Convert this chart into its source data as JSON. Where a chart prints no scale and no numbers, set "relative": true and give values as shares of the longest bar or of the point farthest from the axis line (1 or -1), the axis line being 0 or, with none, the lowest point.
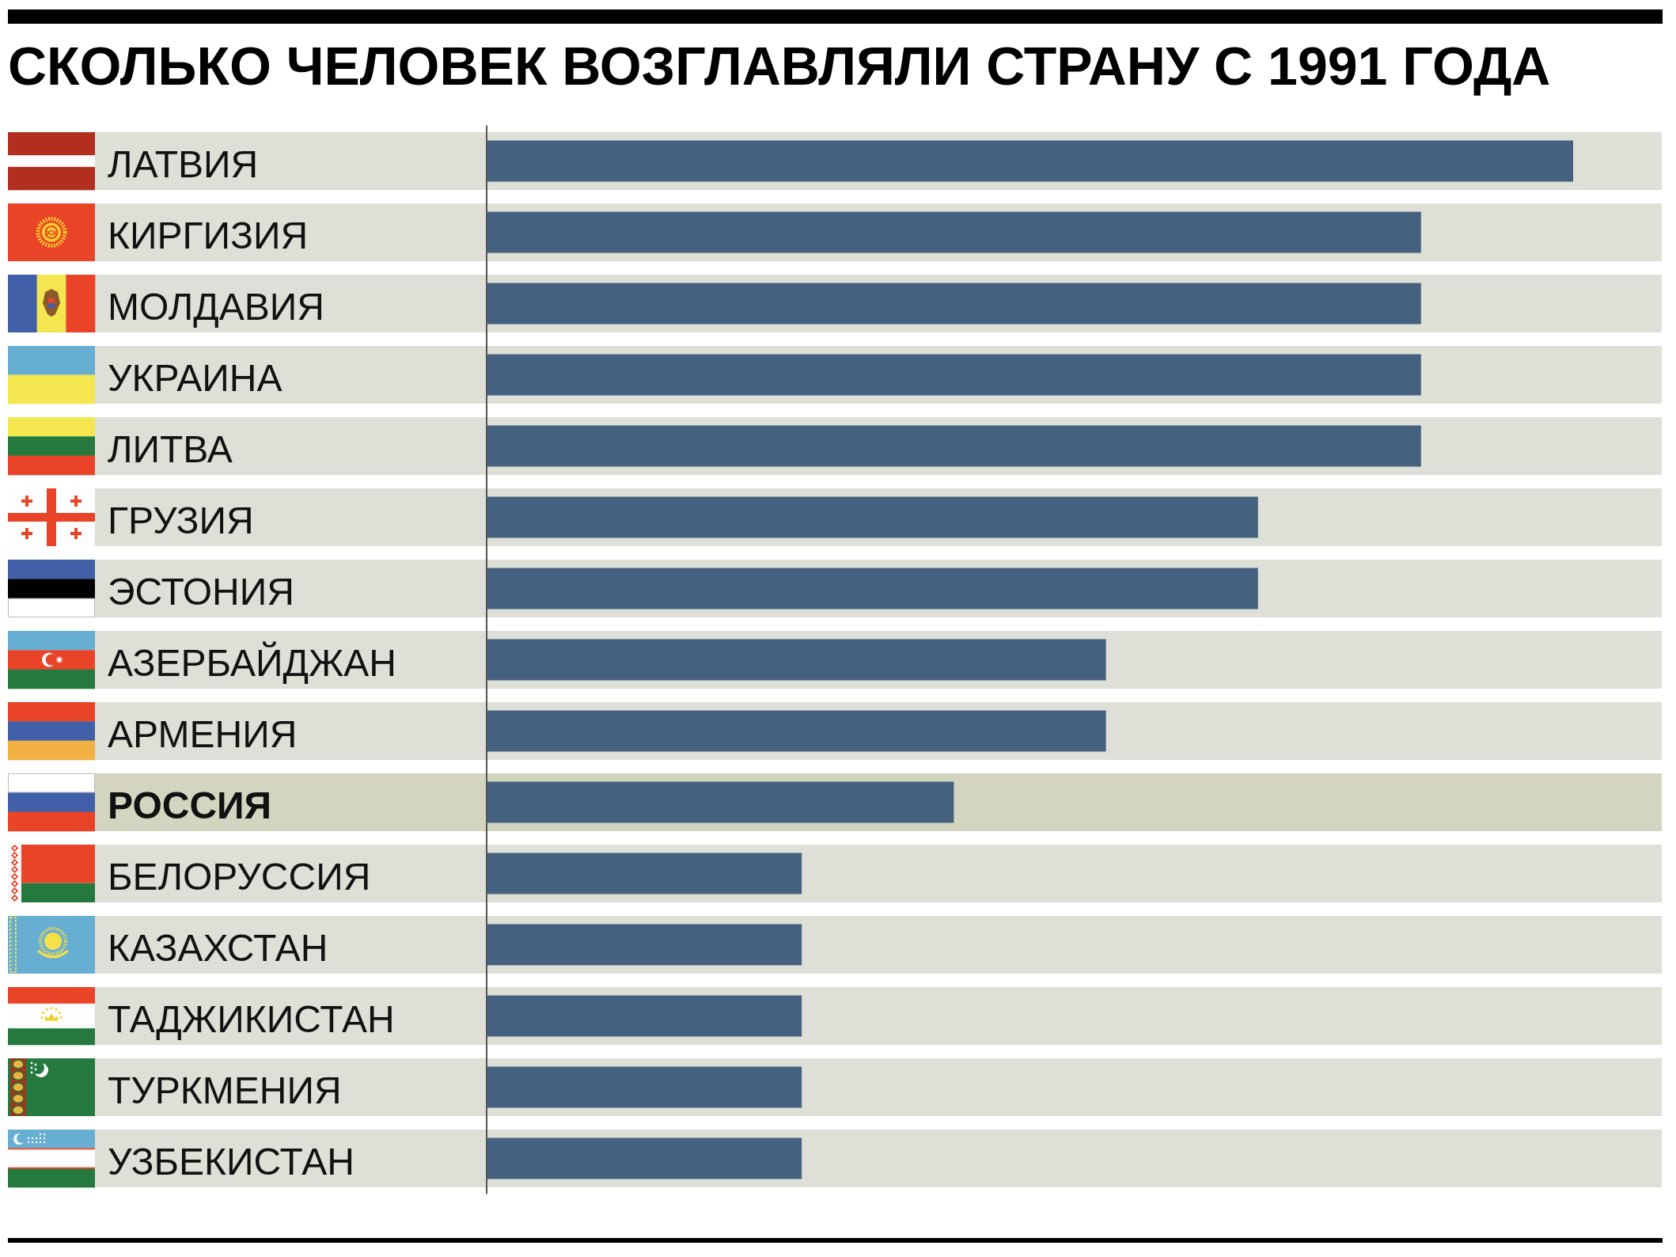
{
  "chart_data": {
    "type": "bar",
    "orientation": "horizontal",
    "relative": true,
    "title": "СКОЛЬКО ЧЕЛОВЕК ВОЗГЛАВЛЯЛИ СТРАНУ С 1991 ГОДА",
    "categories": [
      "ЛАТВИЯ",
      "КИРГИЗИЯ",
      "МОЛДАВИЯ",
      "УКРАИНА",
      "ЛИТВА",
      "ГРУЗИЯ",
      "ЭСТОНИЯ",
      "АЗЕРБАЙДЖАН",
      "АРМЕНИЯ",
      "РОССИЯ",
      "БЕЛОРУССИЯ",
      "КАЗАХСТАН",
      "ТАДЖИКИСТАН",
      "ТУРКМЕНИЯ",
      "УЗБЕКИСТАН"
    ],
    "values": [
      1,
      0.86,
      0.86,
      0.86,
      0.86,
      0.71,
      0.71,
      0.57,
      0.57,
      0.43,
      0.29,
      0.29,
      0.29,
      0.29,
      0.29
    ],
    "color": "#44627f",
    "bands": [
      {
        "axis": "y",
        "from": "ЛАТВИЯ",
        "to": "ЛАТВИЯ",
        "color": "#dedfd6"
      },
      {
        "axis": "y",
        "from": "КИРГИЗИЯ",
        "to": "КИРГИЗИЯ",
        "color": "#dedfd6"
      },
      {
        "axis": "y",
        "from": "МОЛДАВИЯ",
        "to": "МОЛДАВИЯ",
        "color": "#dedfd6"
      },
      {
        "axis": "y",
        "from": "УКРАИНА",
        "to": "УКРАИНА",
        "color": "#dedfd6"
      },
      {
        "axis": "y",
        "from": "ЛИТВА",
        "to": "ЛИТВА",
        "color": "#dedfd6"
      },
      {
        "axis": "y",
        "from": "ГРУЗИЯ",
        "to": "ГРУЗИЯ",
        "color": "#dedfd6"
      },
      {
        "axis": "y",
        "from": "ЭСТОНИЯ",
        "to": "ЭСТОНИЯ",
        "color": "#dedfd6"
      },
      {
        "axis": "y",
        "from": "АЗЕРБАЙДЖАН",
        "to": "АЗЕРБАЙДЖАН",
        "color": "#dedfd6"
      },
      {
        "axis": "y",
        "from": "АРМЕНИЯ",
        "to": "АРМЕНИЯ",
        "color": "#dedfd6"
      },
      {
        "axis": "y",
        "from": "РОССИЯ",
        "to": "РОССИЯ",
        "color": "#d3d5c0"
      },
      {
        "axis": "y",
        "from": "БЕЛОРУССИЯ",
        "to": "БЕЛОРУССИЯ",
        "color": "#dedfd6"
      },
      {
        "axis": "y",
        "from": "КАЗАХСТАН",
        "to": "КАЗАХСТАН",
        "color": "#dedfd6"
      },
      {
        "axis": "y",
        "from": "ТАДЖИКИСТАН",
        "to": "ТАДЖИКИСТАН",
        "color": "#dedfd6"
      },
      {
        "axis": "y",
        "from": "ТУРКМЕНИЯ",
        "to": "ТУРКМЕНИЯ",
        "color": "#dedfd6"
      },
      {
        "axis": "y",
        "from": "УЗБЕКИСТАН",
        "to": "УЗБЕКИСТАН",
        "color": "#dedfd6"
      }
    ]
  }
}
